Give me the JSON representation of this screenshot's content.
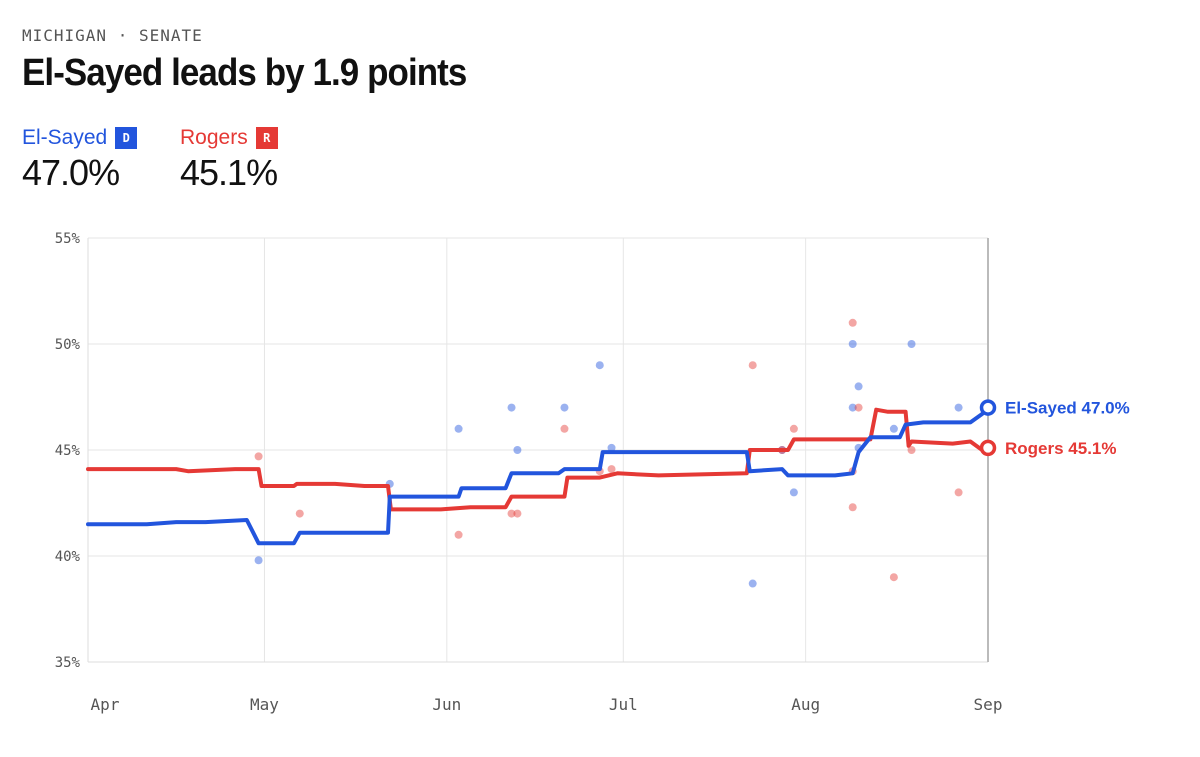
{
  "header": {
    "kicker": "MICHIGAN · SENATE",
    "title": "El-Sayed leads by 1.9 points"
  },
  "candidates": [
    {
      "name": "El-Sayed",
      "party": "D",
      "pct": "47.0%",
      "color": "#2255dd"
    },
    {
      "name": "Rogers",
      "party": "R",
      "pct": "45.1%",
      "color": "#e53935"
    }
  ],
  "chart_data": {
    "type": "line",
    "ylim": [
      35,
      55
    ],
    "yticks": [
      55,
      50,
      45,
      40,
      35
    ],
    "ytick_labels": [
      "55%",
      "50%",
      "45%",
      "40%",
      "35%"
    ],
    "x_start": "Apr 1",
    "x_end": "Sep 1",
    "xtick_labels": [
      "Apr",
      "May",
      "Jun",
      "Jul",
      "Aug",
      "Sep"
    ],
    "xtick_days": [
      0,
      30,
      61,
      91,
      122,
      153
    ],
    "grid": true,
    "series": [
      {
        "name": "El-Sayed",
        "color": "#2255dd",
        "end_label": "El-Sayed 47.0%",
        "line": [
          [
            0,
            41.5
          ],
          [
            10,
            41.5
          ],
          [
            15,
            41.6
          ],
          [
            20,
            41.6
          ],
          [
            27,
            41.7
          ],
          [
            29,
            40.6
          ],
          [
            35,
            40.6
          ],
          [
            36,
            41.1
          ],
          [
            42,
            41.1
          ],
          [
            48,
            41.1
          ],
          [
            51,
            41.1
          ],
          [
            51.3,
            42.8
          ],
          [
            60,
            42.8
          ],
          [
            63,
            42.8
          ],
          [
            63.5,
            43.2
          ],
          [
            71,
            43.2
          ],
          [
            72,
            43.9
          ],
          [
            80,
            43.9
          ],
          [
            81,
            44.1
          ],
          [
            87,
            44.1
          ],
          [
            87.5,
            44.9
          ],
          [
            95,
            44.9
          ],
          [
            105,
            44.9
          ],
          [
            112,
            44.9
          ],
          [
            112.5,
            44.0
          ],
          [
            118,
            44.1
          ],
          [
            119,
            43.8
          ],
          [
            127,
            43.8
          ],
          [
            130,
            43.9
          ],
          [
            131,
            44.9
          ],
          [
            133,
            45.6
          ],
          [
            138,
            45.6
          ],
          [
            139,
            46.2
          ],
          [
            142,
            46.3
          ],
          [
            150,
            46.3
          ],
          [
            152,
            46.7
          ],
          [
            153,
            47.0
          ]
        ],
        "polls": [
          [
            29,
            39.8
          ],
          [
            51.3,
            43.4
          ],
          [
            63,
            46.0
          ],
          [
            72,
            47.0
          ],
          [
            73,
            45.0
          ],
          [
            81,
            47.0
          ],
          [
            87,
            49.0
          ],
          [
            89,
            45.1
          ],
          [
            113,
            38.7
          ],
          [
            118,
            45.0
          ],
          [
            120,
            43.0
          ],
          [
            130,
            50.0
          ],
          [
            130,
            47.0
          ],
          [
            131,
            48.0
          ],
          [
            131,
            45.1
          ],
          [
            137,
            46.0
          ],
          [
            140,
            50.0
          ],
          [
            148,
            47.0
          ]
        ]
      },
      {
        "name": "Rogers",
        "color": "#e53935",
        "end_label": "Rogers 45.1%",
        "line": [
          [
            0,
            44.1
          ],
          [
            8,
            44.1
          ],
          [
            15,
            44.1
          ],
          [
            17,
            44.0
          ],
          [
            25,
            44.1
          ],
          [
            29,
            44.1
          ],
          [
            29.5,
            43.3
          ],
          [
            35,
            43.3
          ],
          [
            35.5,
            43.4
          ],
          [
            42,
            43.4
          ],
          [
            47,
            43.3
          ],
          [
            51,
            43.3
          ],
          [
            51.5,
            42.2
          ],
          [
            60,
            42.2
          ],
          [
            65,
            42.3
          ],
          [
            71,
            42.3
          ],
          [
            72,
            42.8
          ],
          [
            81,
            42.8
          ],
          [
            81.5,
            43.7
          ],
          [
            87,
            43.7
          ],
          [
            90,
            43.9
          ],
          [
            97,
            43.8
          ],
          [
            112,
            43.9
          ],
          [
            112.5,
            45.0
          ],
          [
            119,
            45.0
          ],
          [
            120,
            45.5
          ],
          [
            127,
            45.5
          ],
          [
            133,
            45.5
          ],
          [
            134,
            46.9
          ],
          [
            136,
            46.8
          ],
          [
            139,
            46.8
          ],
          [
            139.5,
            45.2
          ],
          [
            140,
            45.4
          ],
          [
            147,
            45.3
          ],
          [
            150,
            45.4
          ],
          [
            152,
            45.0
          ],
          [
            153,
            45.1
          ]
        ],
        "polls": [
          [
            29,
            44.7
          ],
          [
            36,
            42.0
          ],
          [
            63,
            41.0
          ],
          [
            72,
            42.0
          ],
          [
            73,
            42.0
          ],
          [
            81,
            46.0
          ],
          [
            87,
            44.0
          ],
          [
            89,
            44.1
          ],
          [
            113,
            49.0
          ],
          [
            118,
            45.0
          ],
          [
            120,
            46.0
          ],
          [
            130,
            51.0
          ],
          [
            130,
            44.0
          ],
          [
            130,
            42.3
          ],
          [
            131,
            47.0
          ],
          [
            137,
            39.0
          ],
          [
            140,
            45.0
          ],
          [
            148,
            43.0
          ]
        ]
      }
    ]
  }
}
